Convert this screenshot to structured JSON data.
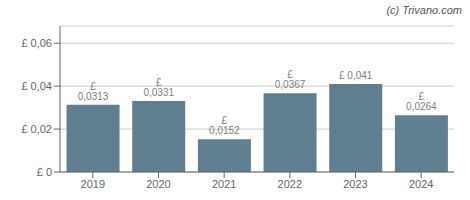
{
  "chart_data": {
    "type": "bar",
    "annotation": "(c) Trivano.com",
    "categories": [
      "2019",
      "2020",
      "2021",
      "2022",
      "2023",
      "2024"
    ],
    "values": [
      0.0313,
      0.0331,
      0.0152,
      0.0367,
      0.041,
      0.0264
    ],
    "value_labels": [
      "£ 0,0313",
      "£ 0,0331",
      "£ 0,0152",
      "£ 0,0367",
      "£ 0,041",
      "£ 0,0264"
    ],
    "data_labels": true,
    "color": "#5f7f90",
    "ylim": [
      0,
      0.068
    ],
    "yticks": [
      {
        "value": 0,
        "label": "£ 0"
      },
      {
        "value": 0.02,
        "label": "£ 0,02"
      },
      {
        "value": 0.04,
        "label": "£ 0,04"
      },
      {
        "value": 0.06,
        "label": "£ 0,06"
      }
    ],
    "grid": true
  }
}
